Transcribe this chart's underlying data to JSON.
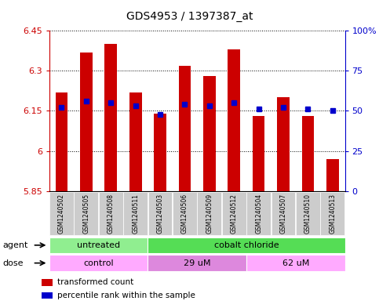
{
  "title": "GDS4953 / 1397387_at",
  "samples": [
    "GSM1240502",
    "GSM1240505",
    "GSM1240508",
    "GSM1240511",
    "GSM1240503",
    "GSM1240506",
    "GSM1240509",
    "GSM1240512",
    "GSM1240504",
    "GSM1240507",
    "GSM1240510",
    "GSM1240513"
  ],
  "transformed_count": [
    6.22,
    6.37,
    6.4,
    6.22,
    6.14,
    6.32,
    6.28,
    6.38,
    6.13,
    6.2,
    6.13,
    5.97
  ],
  "percentile_rank": [
    52,
    56,
    55,
    53,
    48,
    54,
    53,
    55,
    51,
    52,
    51,
    50
  ],
  "ymin": 5.85,
  "ymax": 6.45,
  "yticks": [
    5.85,
    6.0,
    6.15,
    6.3,
    6.45
  ],
  "ytick_labels": [
    "5.85",
    "6",
    "6.15",
    "6.3",
    "6.45"
  ],
  "right_yticks": [
    0,
    25,
    50,
    75,
    100
  ],
  "right_ytick_labels": [
    "0",
    "25",
    "50",
    "75",
    "100%"
  ],
  "bar_color": "#cc0000",
  "dot_color": "#0000cc",
  "bar_width": 0.5,
  "agent_groups": [
    {
      "label": "untreated",
      "start": 0,
      "end": 4,
      "color": "#90ee90"
    },
    {
      "label": "cobalt chloride",
      "start": 4,
      "end": 12,
      "color": "#55dd55"
    }
  ],
  "dose_groups": [
    {
      "label": "control",
      "start": 0,
      "end": 4,
      "color": "#ffaaff"
    },
    {
      "label": "29 uM",
      "start": 4,
      "end": 8,
      "color": "#dd88dd"
    },
    {
      "label": "62 uM",
      "start": 8,
      "end": 12,
      "color": "#ffaaff"
    }
  ],
  "legend_items": [
    {
      "color": "#cc0000",
      "label": "transformed count"
    },
    {
      "color": "#0000cc",
      "label": "percentile rank within the sample"
    }
  ],
  "left_axis_color": "#cc0000",
  "right_axis_color": "#0000cc",
  "sample_box_color": "#cccccc"
}
